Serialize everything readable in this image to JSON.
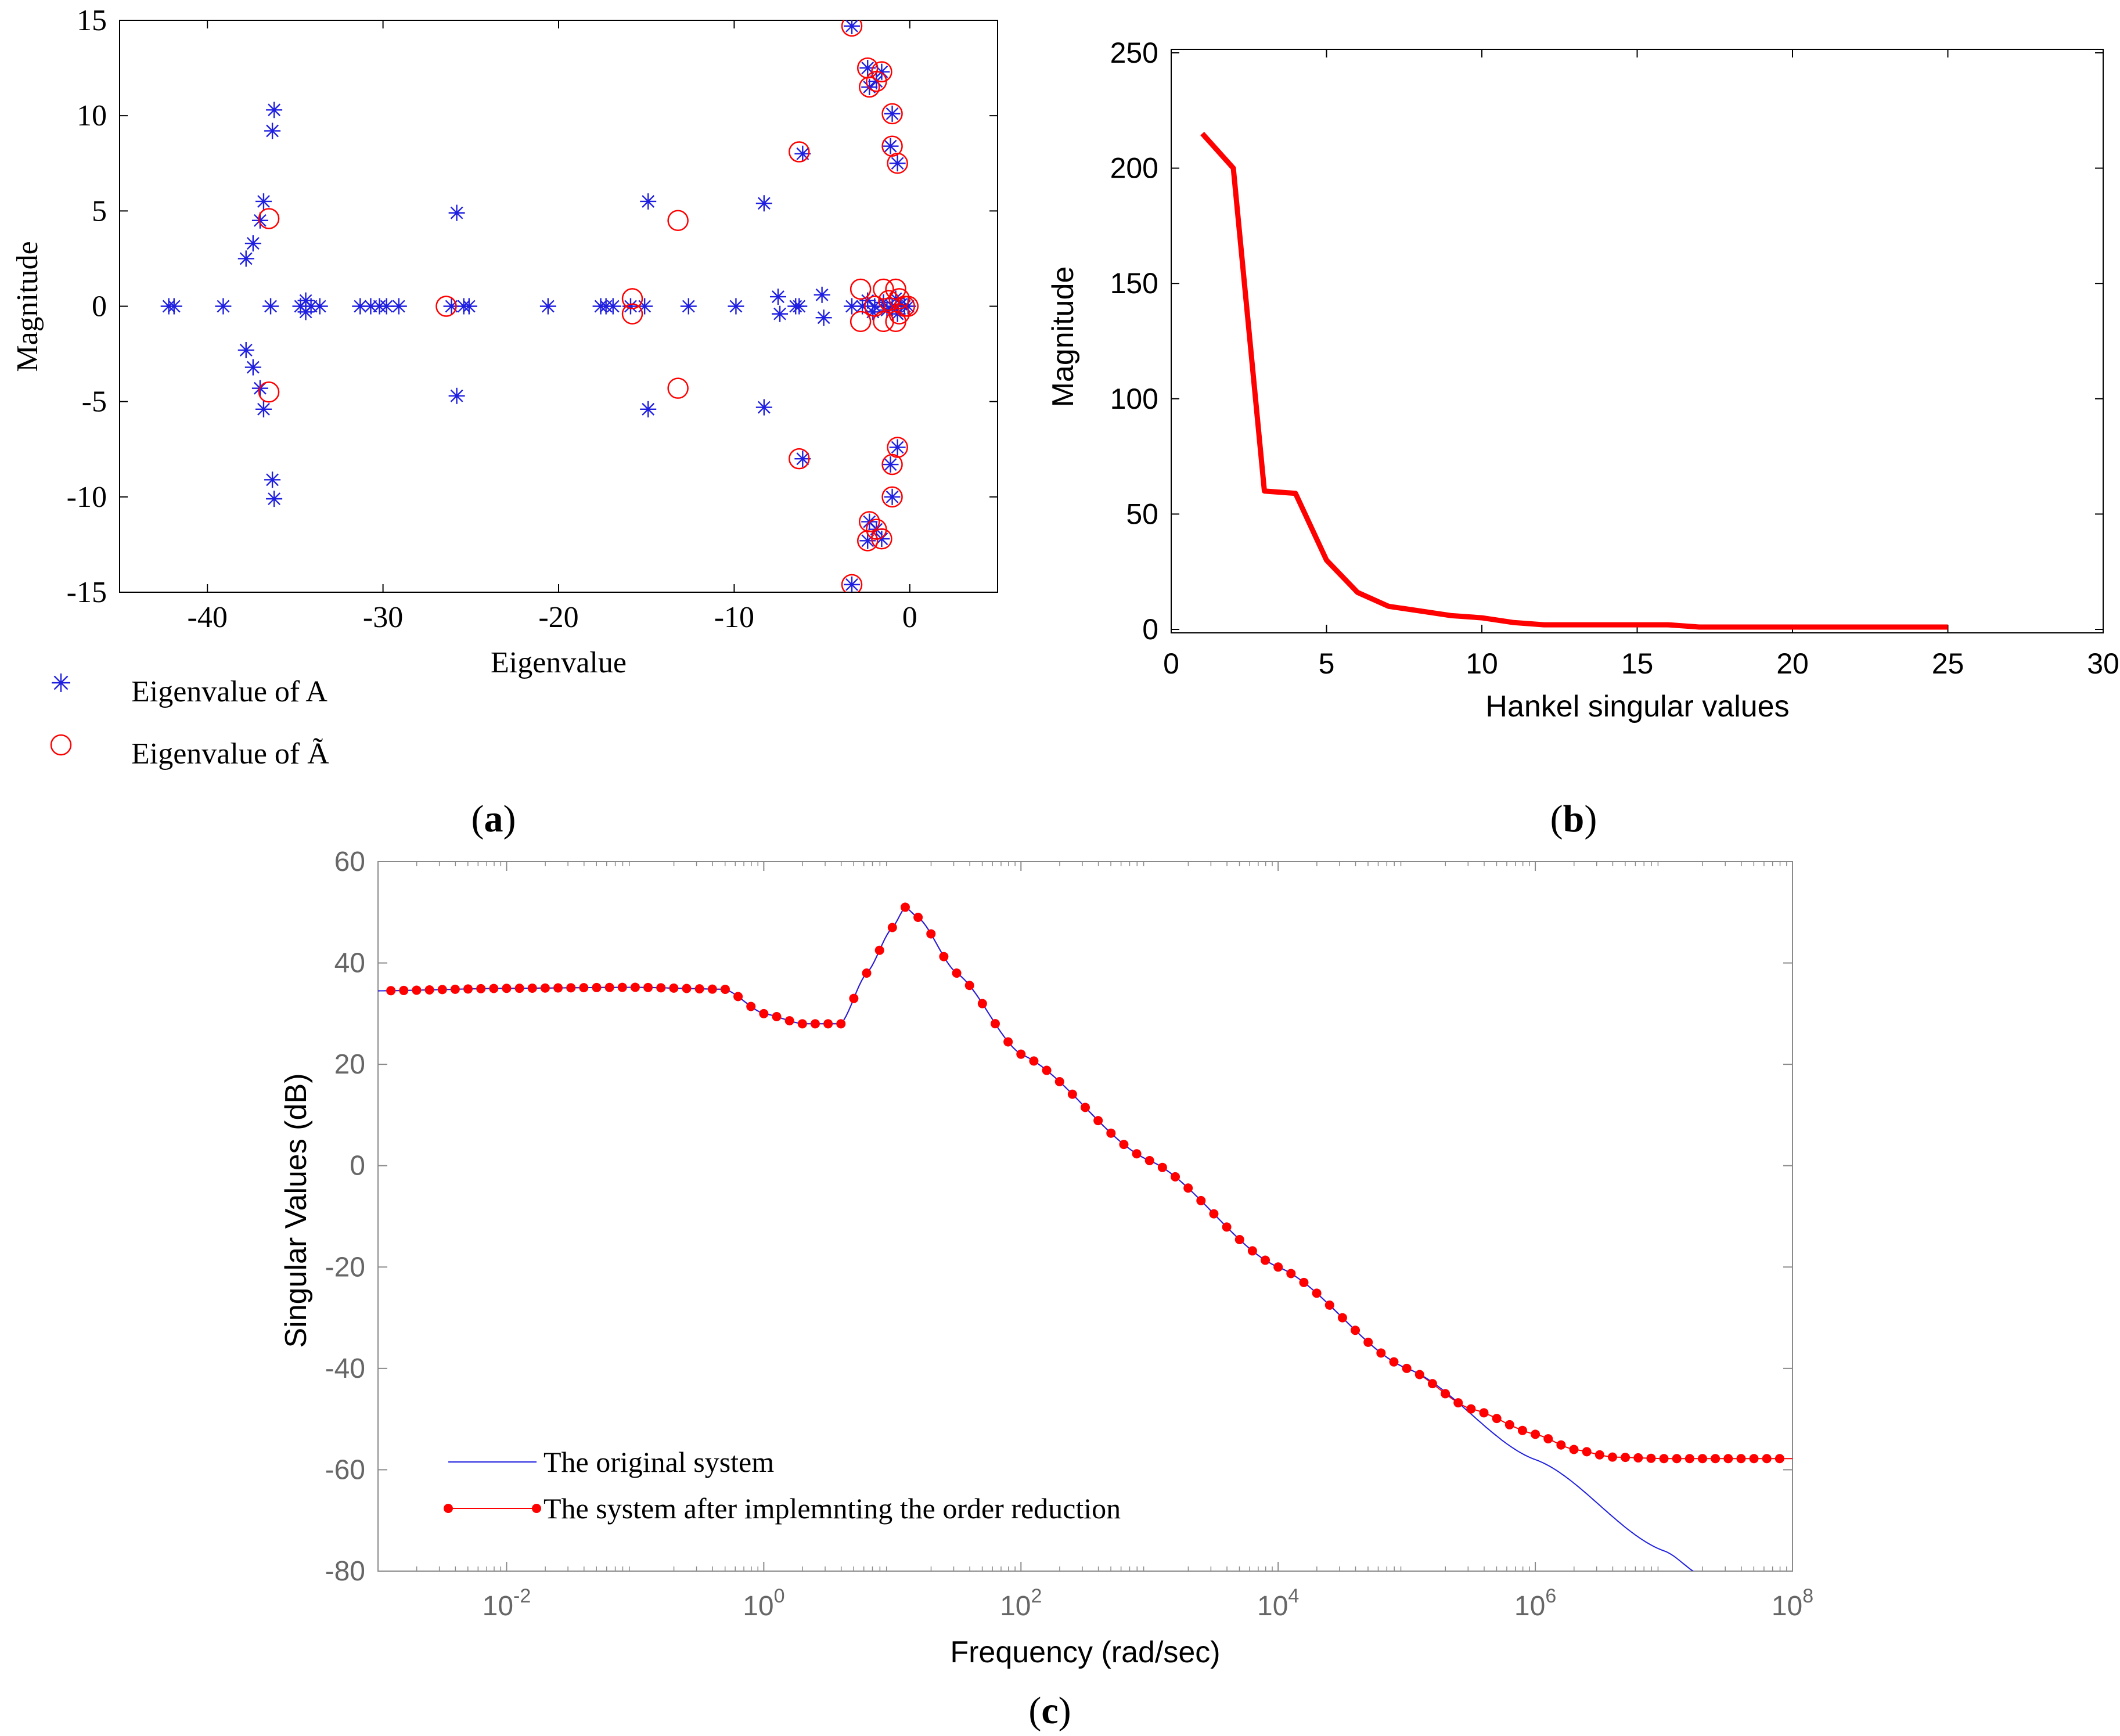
{
  "colors": {
    "blue": "#1f1fe0",
    "red": "#ff0000",
    "axis": "#000000",
    "grey_axis": "#8a8a8a"
  },
  "panel_labels": {
    "a": "a",
    "b": "b",
    "c": "c"
  },
  "chart_data": [
    {
      "id": "a",
      "type": "scatter",
      "title": "",
      "xlabel": "Eigenvalue",
      "ylabel": "Magnitude",
      "xlim": [
        -45,
        5
      ],
      "ylim": [
        -15,
        15
      ],
      "xticks": [
        -40,
        -30,
        -20,
        -10,
        0
      ],
      "xtick_labels": [
        "-40",
        "-30",
        "-20",
        "-10",
        "0"
      ],
      "yticks": [
        -15,
        -10,
        -5,
        0,
        5,
        10,
        15
      ],
      "ytick_labels": [
        "-15",
        "-10",
        "-5",
        "0",
        "5",
        "10",
        "15"
      ],
      "legend": [
        "Eigenvalue of A",
        "Eigenvalue of Ã"
      ],
      "legend_position": "below",
      "series": [
        {
          "name": "Eigenvalue of A",
          "marker": "asterisk",
          "points": [
            [
              -42.2,
              0
            ],
            [
              -41.9,
              0
            ],
            [
              -39.1,
              0
            ],
            [
              -36.4,
              0
            ],
            [
              -34.7,
              0
            ],
            [
              -34.4,
              0.3
            ],
            [
              -34.4,
              -0.3
            ],
            [
              -34.1,
              0
            ],
            [
              -33.6,
              0
            ],
            [
              -31.3,
              0
            ],
            [
              -30.7,
              0
            ],
            [
              -30.2,
              0
            ],
            [
              -29.8,
              0
            ],
            [
              -29.1,
              0
            ],
            [
              -26.1,
              0
            ],
            [
              -25.4,
              0
            ],
            [
              -25.1,
              0
            ],
            [
              -20.6,
              0
            ],
            [
              -17.6,
              0
            ],
            [
              -17.3,
              0
            ],
            [
              -16.9,
              0
            ],
            [
              -15.9,
              0
            ],
            [
              -15.1,
              0
            ],
            [
              -12.6,
              0
            ],
            [
              -9.9,
              0
            ],
            [
              -7.5,
              0.5
            ],
            [
              -7.4,
              -0.4
            ],
            [
              -6.5,
              0
            ],
            [
              -6.3,
              0
            ],
            [
              -5.0,
              0.6
            ],
            [
              -4.9,
              -0.6
            ],
            [
              -3.3,
              0
            ],
            [
              -2.7,
              0
            ],
            [
              -2.4,
              0.3
            ],
            [
              -2.1,
              -0.3
            ],
            [
              -2.0,
              0
            ],
            [
              -1.5,
              0.2
            ],
            [
              -1.3,
              -0.2
            ],
            [
              -1.0,
              0
            ],
            [
              -0.8,
              0.4
            ],
            [
              -0.7,
              -0.4
            ],
            [
              -0.5,
              0.1
            ],
            [
              -0.3,
              0
            ],
            [
              -0.1,
              0
            ],
            [
              -36.2,
              10.3
            ],
            [
              -36.3,
              9.2
            ],
            [
              -36.2,
              -10.1
            ],
            [
              -36.3,
              -9.1
            ],
            [
              -36.8,
              5.5
            ],
            [
              -37.0,
              4.5
            ],
            [
              -37.4,
              3.3
            ],
            [
              -37.8,
              2.5
            ],
            [
              -36.8,
              -5.4
            ],
            [
              -37.0,
              -4.3
            ],
            [
              -37.4,
              -3.2
            ],
            [
              -37.8,
              -2.3
            ],
            [
              -25.8,
              4.9
            ],
            [
              -25.8,
              -4.7
            ],
            [
              -14.9,
              5.5
            ],
            [
              -14.9,
              -5.4
            ],
            [
              -8.3,
              5.4
            ],
            [
              -8.3,
              -5.3
            ],
            [
              -6.1,
              8.0
            ],
            [
              -6.1,
              -8.0
            ],
            [
              -3.3,
              14.7
            ],
            [
              -3.3,
              -14.6
            ],
            [
              -2.4,
              12.5
            ],
            [
              -2.3,
              11.5
            ],
            [
              -2.4,
              -12.3
            ],
            [
              -2.3,
              -11.3
            ],
            [
              -1.6,
              12.3
            ],
            [
              -1.9,
              11.8
            ],
            [
              -1.6,
              -12.2
            ],
            [
              -1.9,
              -11.7
            ],
            [
              -1.0,
              10.1
            ],
            [
              -1.1,
              8.4
            ],
            [
              -0.7,
              7.5
            ],
            [
              -1.0,
              -10.0
            ],
            [
              -1.1,
              -8.3
            ],
            [
              -0.7,
              -7.4
            ]
          ]
        },
        {
          "name": "Eigenvalue of Ã",
          "marker": "circle",
          "points": [
            [
              -36.5,
              4.6
            ],
            [
              -36.5,
              -4.5
            ],
            [
              -26.4,
              0
            ],
            [
              -15.8,
              0.4
            ],
            [
              -15.8,
              -0.4
            ],
            [
              -13.2,
              4.5
            ],
            [
              -13.2,
              -4.3
            ],
            [
              -6.3,
              8.1
            ],
            [
              -6.3,
              -8.0
            ],
            [
              -3.3,
              14.7
            ],
            [
              -3.3,
              -14.6
            ],
            [
              -2.4,
              12.5
            ],
            [
              -2.3,
              11.5
            ],
            [
              -2.4,
              -12.3
            ],
            [
              -2.3,
              -11.3
            ],
            [
              -1.6,
              12.3
            ],
            [
              -1.9,
              11.8
            ],
            [
              -1.6,
              -12.2
            ],
            [
              -1.9,
              -11.7
            ],
            [
              -1.0,
              10.1
            ],
            [
              -1.0,
              8.4
            ],
            [
              -0.7,
              7.5
            ],
            [
              -1.0,
              -10.0
            ],
            [
              -1.0,
              -8.3
            ],
            [
              -0.7,
              -7.4
            ],
            [
              -2.8,
              0.9
            ],
            [
              -2.8,
              -0.8
            ],
            [
              -2.0,
              0
            ],
            [
              -1.5,
              0.9
            ],
            [
              -1.5,
              -0.8
            ],
            [
              -1.2,
              0.3
            ],
            [
              -0.8,
              0.9
            ],
            [
              -0.8,
              -0.8
            ],
            [
              -0.6,
              0.4
            ],
            [
              -0.3,
              0
            ],
            [
              -0.1,
              0
            ],
            [
              -0.6,
              -0.4
            ]
          ]
        }
      ]
    },
    {
      "id": "b",
      "type": "line",
      "title": "",
      "xlabel": "Hankel singular values",
      "ylabel": "Magnitude",
      "xlim": [
        0,
        30
      ],
      "ylim": [
        0,
        250
      ],
      "xticks": [
        0,
        5,
        10,
        15,
        20,
        25,
        30
      ],
      "xtick_labels": [
        "0",
        "5",
        "10",
        "15",
        "20",
        "25",
        "30"
      ],
      "yticks": [
        0,
        50,
        100,
        150,
        200,
        250
      ],
      "ytick_labels": [
        "0",
        "50",
        "100",
        "150",
        "200",
        "250"
      ],
      "x": [
        1,
        2,
        3,
        4,
        5,
        6,
        7,
        8,
        9,
        10,
        11,
        12,
        13,
        14,
        15,
        16,
        17,
        18,
        19,
        20,
        21,
        22,
        23,
        24,
        25
      ],
      "series": [
        {
          "name": "Hankel singular values",
          "values": [
            215,
            200,
            60,
            59,
            30,
            16,
            10,
            8,
            6,
            5,
            3,
            2,
            2,
            2,
            2,
            2,
            1,
            1,
            1,
            1,
            1,
            1,
            1,
            1,
            1
          ]
        }
      ]
    },
    {
      "id": "c",
      "type": "line",
      "title": "",
      "xlabel": "Frequency (rad/sec)",
      "ylabel": "Singular Values (dB)",
      "xscale": "log",
      "xlim_log10": [
        -3,
        8
      ],
      "ylim": [
        -80,
        60
      ],
      "xtick_exponents": [
        -2,
        0,
        2,
        4,
        6,
        8
      ],
      "xtick_base": "10",
      "xtick_labels": [
        "-2",
        "0",
        "2",
        "4",
        "6",
        "8"
      ],
      "yticks": [
        -80,
        -60,
        -40,
        -20,
        0,
        20,
        40,
        60
      ],
      "ytick_labels": [
        "-80",
        "-60",
        "-40",
        "-20",
        "0",
        "20",
        "40",
        "60"
      ],
      "legend": [
        "The original system",
        "The system after implemnting the order reduction"
      ],
      "legend_position": "bottom-left",
      "series": [
        {
          "name": "The original system",
          "log10_x": [
            -3,
            -2,
            -1,
            -0.3,
            0,
            0.3,
            0.6,
            0.8,
            1.0,
            1.1,
            1.2,
            1.5,
            2,
            3,
            4,
            5,
            6,
            7,
            7.3
          ],
          "values": [
            34.5,
            35,
            35.2,
            34.8,
            30,
            28,
            28,
            38,
            47,
            51,
            49,
            38,
            22,
            1,
            -20,
            -40,
            -58,
            -76,
            -81
          ]
        },
        {
          "name": "The system after implemnting the order reduction",
          "log10_x": [
            -3,
            -2,
            -1,
            -0.3,
            0,
            0.3,
            0.6,
            0.8,
            1.0,
            1.1,
            1.2,
            1.5,
            2,
            3,
            4,
            5,
            5.5,
            6,
            6.3,
            6.6,
            7,
            7.5,
            8
          ],
          "values": [
            34.5,
            35,
            35.2,
            34.8,
            30,
            28,
            28,
            38,
            47,
            51,
            49,
            38,
            22,
            1,
            -20,
            -40,
            -48,
            -53,
            -56,
            -57.5,
            -57.8,
            -57.8,
            -57.8
          ]
        }
      ]
    }
  ]
}
